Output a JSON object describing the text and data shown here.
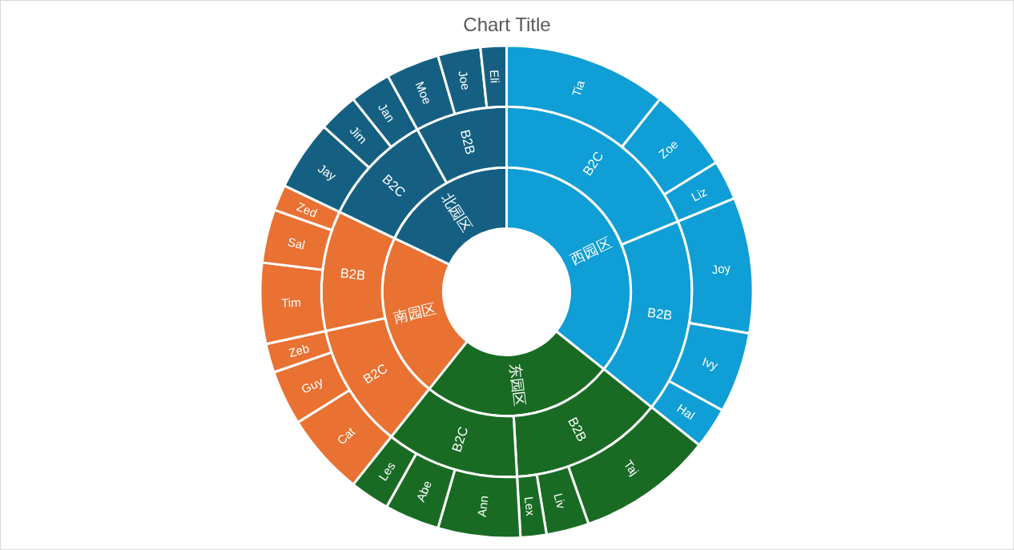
{
  "chart_data": [
    {
      "type": "donut",
      "title": "Chart Title",
      "categories": [
        "西园区",
        "东园区",
        "南园区",
        "北园区"
      ],
      "values": [
        35.7,
        25.0,
        21.4,
        17.9
      ],
      "colors": [
        "#0f9ed5",
        "#196b24",
        "#e97132",
        "#156082"
      ]
    },
    {
      "type": "donut",
      "categories": [
        "B2C",
        "B2B",
        "B2B",
        "B2C",
        "B2C",
        "B2B",
        "B2C",
        "B2B"
      ],
      "values": [
        18.8,
        16.9,
        13.4,
        11.6,
        10.9,
        10.5,
        9.9,
        8.0
      ],
      "colors": [
        "#0f9ed5",
        "#0f9ed5",
        "#196b24",
        "#196b24",
        "#e97132",
        "#e97132",
        "#156082",
        "#156082"
      ]
    },
    {
      "type": "donut",
      "categories": [
        "Tia",
        "Zoe",
        "Liz",
        "Joy",
        "Ivy",
        "Hal",
        "Taj",
        "Liv",
        "Lex",
        "Ann",
        "Abe",
        "Les",
        "Cat",
        "Guy",
        "Zeb",
        "Tim",
        "Sal",
        "Zed",
        "Jay",
        "Jim",
        "Jan",
        "Moe",
        "Joe",
        "Eli"
      ],
      "values": [
        10.7,
        5.5,
        2.6,
        8.9,
        5.3,
        2.7,
        8.9,
        2.8,
        1.7,
        5.4,
        3.6,
        2.6,
        5.4,
        3.6,
        1.9,
        5.3,
        3.5,
        1.7,
        4.6,
        2.6,
        2.7,
        3.5,
        2.8,
        1.7
      ],
      "colors": [
        "#0f9ed5",
        "#0f9ed5",
        "#0f9ed5",
        "#0f9ed5",
        "#0f9ed5",
        "#0f9ed5",
        "#196b24",
        "#196b24",
        "#196b24",
        "#196b24",
        "#196b24",
        "#196b24",
        "#e97132",
        "#e97132",
        "#e97132",
        "#e97132",
        "#e97132",
        "#e97132",
        "#156082",
        "#156082",
        "#156082",
        "#156082",
        "#156082",
        "#156082"
      ]
    }
  ]
}
